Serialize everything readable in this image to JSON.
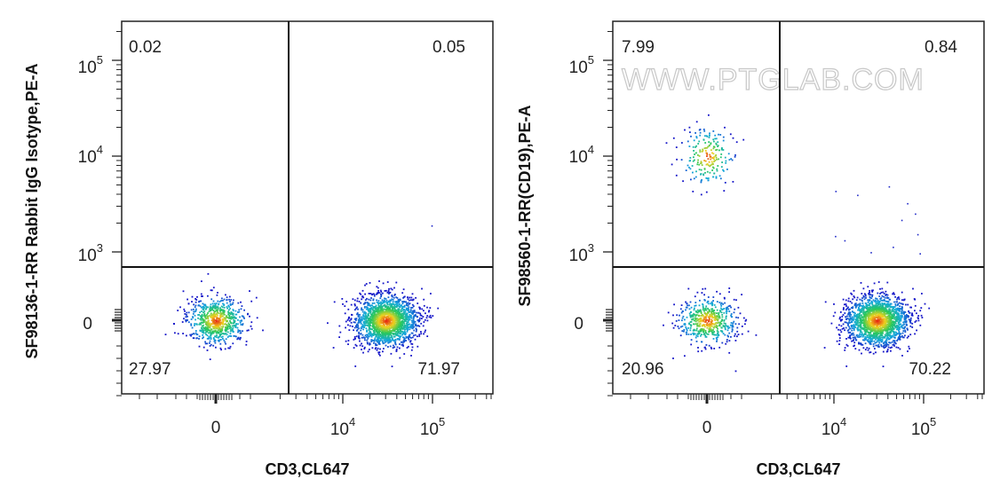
{
  "watermark": "WWW.PTGLAB.COM",
  "chart_data": [
    {
      "type": "scatter",
      "title": "",
      "xlabel": "CD3,CL647",
      "ylabel": "SF98136-1-RR Rabbit IgG Isotype,PE-A",
      "x_scale": "biexponential",
      "y_scale": "biexponential",
      "x_tick_labels": [
        "0",
        "10^4",
        "10^5"
      ],
      "y_tick_labels": [
        "0",
        "10^3",
        "10^4",
        "10^5"
      ],
      "quadrants": {
        "upper_left": "0.02",
        "upper_right": "0.05",
        "lower_left": "27.97",
        "lower_right": "71.97"
      },
      "populations": [
        {
          "quadrant": "lower_left",
          "percent": 27.97,
          "center_x": 0,
          "center_y": 0
        },
        {
          "quadrant": "lower_right",
          "percent": 71.97,
          "center_x": 30000,
          "center_y": 0
        }
      ]
    },
    {
      "type": "scatter",
      "title": "",
      "xlabel": "CD3,CL647",
      "ylabel": "SF98560-1-RR(CD19),PE-A",
      "x_scale": "biexponential",
      "y_scale": "biexponential",
      "x_tick_labels": [
        "0",
        "10^4",
        "10^5"
      ],
      "y_tick_labels": [
        "0",
        "10^3",
        "10^4",
        "10^5"
      ],
      "quadrants": {
        "upper_left": "7.99",
        "upper_right": "0.84",
        "lower_left": "20.96",
        "lower_right": "70.22"
      },
      "populations": [
        {
          "quadrant": "upper_left",
          "percent": 7.99,
          "center_x": 0,
          "center_y": 10000
        },
        {
          "quadrant": "lower_left",
          "percent": 20.96,
          "center_x": 0,
          "center_y": 0
        },
        {
          "quadrant": "lower_right",
          "percent": 70.22,
          "center_x": 30000,
          "center_y": 0
        }
      ]
    }
  ]
}
